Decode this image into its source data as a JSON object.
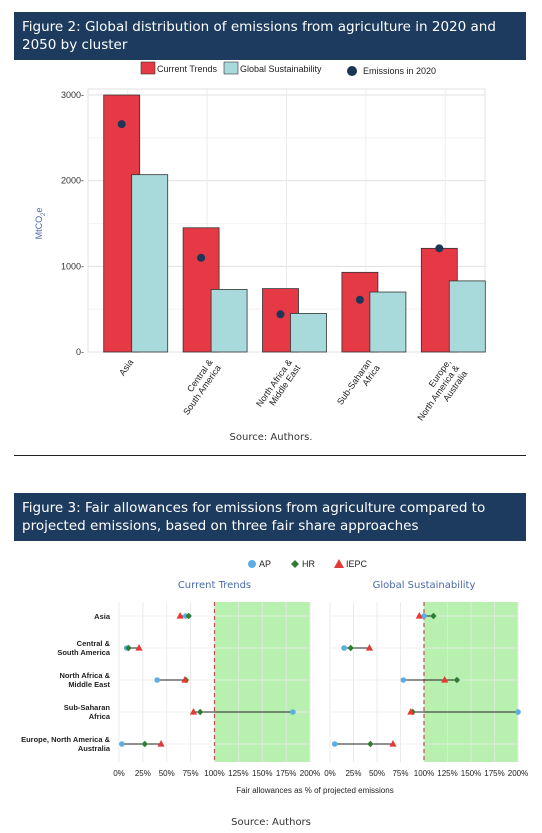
{
  "figure2": {
    "title": "Figure 2: Global distribution of emissions from agriculture in 2020 and 2050 by cluster",
    "source": "Source: Authors.",
    "chart_data": {
      "type": "bar",
      "categories": [
        "Asia",
        "Central & South America",
        "North Africa & Middle East",
        "Sub-Saharan Africa",
        "Europe, North America & Australia"
      ],
      "category_lines": [
        [
          "Asia"
        ],
        [
          "Central &",
          "South America"
        ],
        [
          "North Africa &",
          "Middle East"
        ],
        [
          "Sub-Saharan",
          "Africa"
        ],
        [
          "Europe,",
          "North America &",
          "Australia"
        ]
      ],
      "series": [
        {
          "name": "Current Trends",
          "type": "bar",
          "color": "#e63946",
          "values": [
            3000,
            1450,
            740,
            930,
            1210
          ]
        },
        {
          "name": "Global Sustainability",
          "type": "bar",
          "color": "#a8dadc",
          "values": [
            2070,
            730,
            450,
            700,
            830
          ]
        },
        {
          "name": "Emissions in 2020",
          "type": "point",
          "color": "#1d3557",
          "values": [
            2660,
            1100,
            440,
            610,
            1210
          ]
        }
      ],
      "ylabel": "MtCO2e",
      "ylim": [
        0,
        3000
      ],
      "yticks": [
        "0-",
        "1000-",
        "2000-",
        "3000-"
      ],
      "grid": true,
      "legend_position": "top"
    }
  },
  "figure3": {
    "title": "Figure 3: Fair allowances for emissions from agriculture compared to projected emissions, based on three fair share approaches",
    "source": "Source: Authors",
    "chart_data": {
      "type": "scatter",
      "legend": [
        {
          "name": "AP",
          "color": "#5dade2",
          "marker": "circle"
        },
        {
          "name": "HR",
          "color": "#2e7d32",
          "marker": "diamond"
        },
        {
          "name": "IEPC",
          "color": "#e53935",
          "marker": "triangle"
        }
      ],
      "categories": [
        "Asia",
        "Central & South America",
        "North Africa & Middle East",
        "Sub-Saharan Africa",
        "Europe, North America & Australia"
      ],
      "category_lines": [
        [
          "Asia"
        ],
        [
          "Central &",
          "South America"
        ],
        [
          "North Africa &",
          "Middle East"
        ],
        [
          "Sub-Saharan",
          "Africa"
        ],
        [
          "Europe, North America &",
          "Australia"
        ]
      ],
      "xlabel": "Fair allowances as % of projected emissions",
      "xticks": [
        "0%",
        "25%",
        "50%",
        "75%",
        "100%",
        "125%",
        "150%",
        "175%",
        "200%"
      ],
      "xlim": [
        0,
        200
      ],
      "reference_line": 100,
      "panels": [
        {
          "title": "Current Trends",
          "AP": [
            70,
            8,
            40,
            182,
            3
          ],
          "HR": [
            73,
            10,
            70,
            85,
            27
          ],
          "IEPC": [
            64,
            21,
            69,
            78,
            44
          ]
        },
        {
          "title": "Global Sustainability",
          "AP": [
            100,
            15,
            78,
            200,
            5
          ],
          "HR": [
            110,
            22,
            135,
            88,
            43
          ],
          "IEPC": [
            95,
            42,
            122,
            86,
            67
          ]
        }
      ]
    }
  }
}
